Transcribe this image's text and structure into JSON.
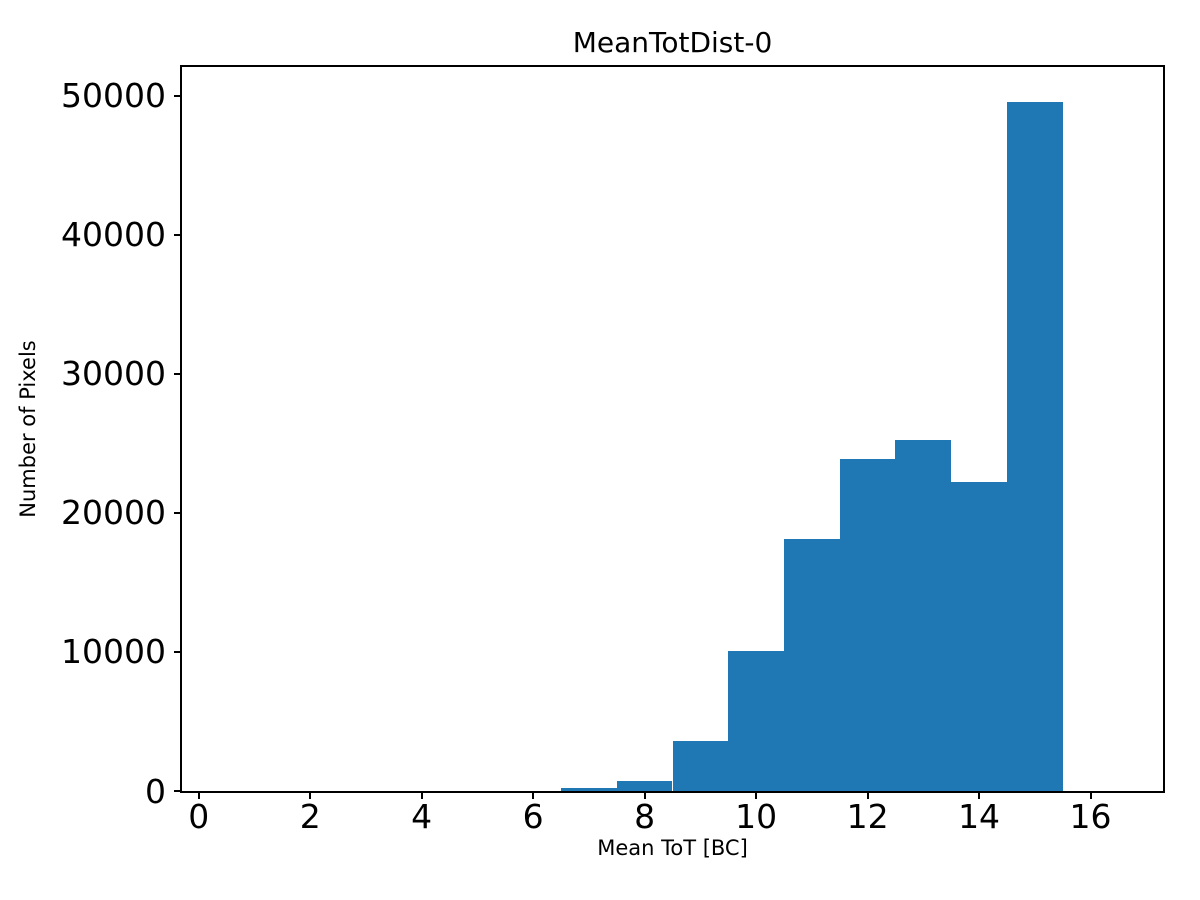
{
  "figure": {
    "background_color": "#ffffff",
    "text_color": "#000000"
  },
  "chart_data": {
    "type": "bar",
    "subtype": "histogram",
    "title": "MeanTotDist-0",
    "xlabel": "Mean ToT [BC]",
    "ylabel": "Number of Pixels",
    "bar_color": "#1f77b4",
    "grid": false,
    "legend": null,
    "bin_width": 1,
    "bin_left_edges": [
      0.5,
      1.5,
      2.5,
      3.5,
      4.5,
      5.5,
      6.5,
      7.5,
      8.5,
      9.5,
      10.5,
      11.5,
      12.5,
      13.5,
      14.5,
      15.5
    ],
    "counts": [
      0,
      0,
      0,
      0,
      0,
      0,
      200,
      750,
      3600,
      10050,
      18100,
      23850,
      25250,
      22250,
      49550,
      0
    ],
    "x_ticks": [
      0,
      2,
      4,
      6,
      8,
      10,
      12,
      14,
      16
    ],
    "x_tick_labels": [
      "0",
      "2",
      "4",
      "6",
      "8",
      "10",
      "12",
      "14",
      "16"
    ],
    "y_ticks": [
      0,
      10000,
      20000,
      30000,
      40000,
      50000
    ],
    "y_tick_labels": [
      "0",
      "10000",
      "20000",
      "30000",
      "40000",
      "50000"
    ],
    "xlim": [
      -0.3,
      17.3
    ],
    "ylim": [
      0,
      52050
    ]
  }
}
